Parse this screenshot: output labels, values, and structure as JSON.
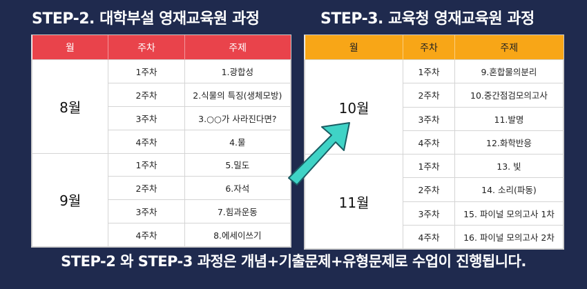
{
  "left": {
    "title": "STEP-2. 대학부설 영재교육원 과정",
    "headers": [
      "월",
      "주차",
      "주제"
    ],
    "months": [
      {
        "name": "8월",
        "rows": [
          {
            "week": "1주차",
            "topic": "1.광합성"
          },
          {
            "week": "2주차",
            "topic": "2.식물의 특징(생체모방)"
          },
          {
            "week": "3주차",
            "topic": "3.○○가 사라진다면?"
          },
          {
            "week": "4주차",
            "topic": "4.물"
          }
        ]
      },
      {
        "name": "9월",
        "rows": [
          {
            "week": "1주차",
            "topic": "5.밀도"
          },
          {
            "week": "2주차",
            "topic": "6.자석"
          },
          {
            "week": "3주차",
            "topic": "7.힘과운동"
          },
          {
            "week": "4주차",
            "topic": "8.에세이쓰기"
          }
        ]
      }
    ]
  },
  "right": {
    "title": "STEP-3. 교육청 영재교육원 과정",
    "headers": [
      "월",
      "주차",
      "주제"
    ],
    "months": [
      {
        "name": "10월",
        "rows": [
          {
            "week": "1주차",
            "topic": "9.혼합물의분리"
          },
          {
            "week": "2주차",
            "topic": "10.중간점검모의고사"
          },
          {
            "week": "3주차",
            "topic": "11.발명"
          },
          {
            "week": "4주차",
            "topic": "12.화학반응"
          }
        ]
      },
      {
        "name": "11월",
        "rows": [
          {
            "week": "1주차",
            "topic": "13. 빛"
          },
          {
            "week": "2주차",
            "topic": "14. 소리(파동)"
          },
          {
            "week": "3주차",
            "topic": "15. 파이널 모의고사 1차"
          },
          {
            "week": "4주차",
            "topic": "16. 파이널 모의고사 2차"
          }
        ]
      }
    ]
  },
  "footer": "STEP-2 와 STEP-3 과정은 개념+기출문제+유형문제로 수업이 진행됩니다.",
  "colors": {
    "background": "#1f2a4e",
    "left_header": "#e9434b",
    "right_header": "#f8a617",
    "arrow": "#3fd3c6"
  },
  "icons": {
    "arrow": "arrow-up-right-icon"
  }
}
